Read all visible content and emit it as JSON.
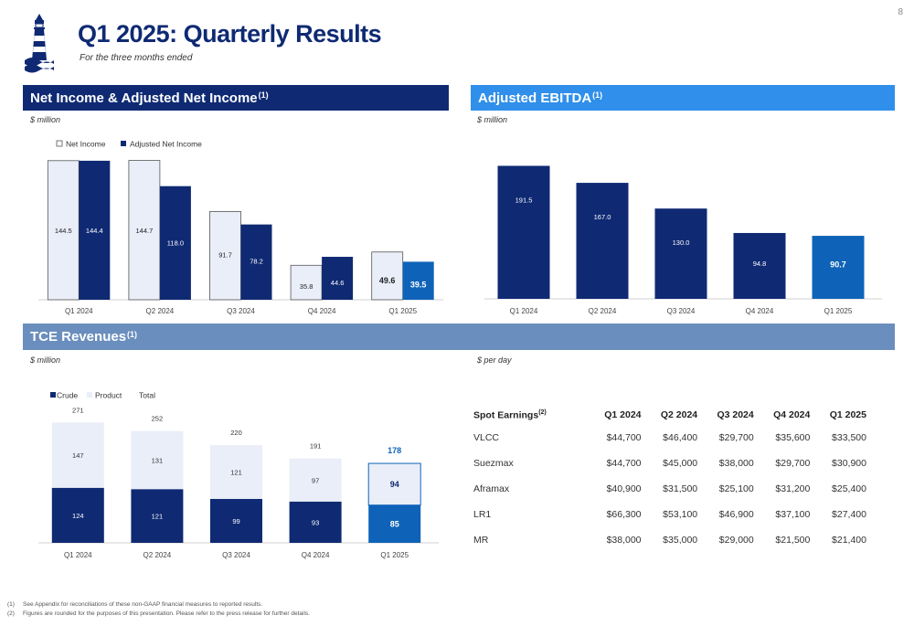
{
  "page": {
    "number": "8",
    "title": "Q1 2025: Quarterly Results",
    "subtitle": "For the three months ended"
  },
  "colors": {
    "navy": "#0f2a73",
    "bright_blue": "#0e63b8",
    "light": "#e9eef8",
    "tce_banner": "#6a8ebd",
    "ebitda_banner": "#2f8fea"
  },
  "net_income": {
    "title": "Net Income & Adjusted Net Income",
    "note_ref": "(1)",
    "unit": "$ million",
    "chart_data": {
      "type": "bar",
      "categories": [
        "Q1 2024",
        "Q2 2024",
        "Q3 2024",
        "Q4 2024",
        "Q1 2025"
      ],
      "series": [
        {
          "name": "Net Income",
          "values": [
            144.5,
            144.7,
            91.7,
            35.8,
            49.6
          ]
        },
        {
          "name": "Adjusted Net Income",
          "values": [
            144.4,
            118.0,
            78.2,
            44.6,
            39.5
          ]
        }
      ],
      "value_labels": [
        [
          "144.5",
          "144.7",
          "91.7",
          "35.8",
          "49.6"
        ],
        [
          "144.4",
          "118.0",
          "78.2",
          "44.6",
          "39.5"
        ]
      ],
      "legend": "top-left",
      "ylim": [
        0,
        150
      ]
    }
  },
  "ebitda": {
    "title": "Adjusted EBITDA",
    "note_ref": "(1)",
    "unit": "$ million",
    "chart_data": {
      "type": "bar",
      "categories": [
        "Q1 2024",
        "Q2 2024",
        "Q3 2024",
        "Q4 2024",
        "Q1 2025"
      ],
      "values": [
        191.5,
        167.0,
        130.0,
        94.8,
        90.7
      ],
      "value_labels": [
        "191.5",
        "167.0",
        "130.0",
        "94.8",
        "90.7"
      ],
      "ylim": [
        0,
        200
      ]
    }
  },
  "tce": {
    "title": "TCE Revenues",
    "note_ref": "(1)",
    "unit": "$ million",
    "chart_data": {
      "type": "bar",
      "stacked": true,
      "categories": [
        "Q1 2024",
        "Q2 2024",
        "Q3 2024",
        "Q4 2024",
        "Q1 2025"
      ],
      "series": [
        {
          "name": "Crude",
          "values": [
            124,
            121,
            99,
            93,
            85
          ]
        },
        {
          "name": "Product",
          "values": [
            147,
            131,
            121,
            97,
            94
          ]
        }
      ],
      "totals": [
        271,
        252,
        220,
        191,
        178
      ],
      "total_label": "Total",
      "legend": "top-left",
      "ylim": [
        0,
        280
      ]
    }
  },
  "spot": {
    "unit": "$ per day",
    "header": "Spot Earnings",
    "note_ref": "(2)",
    "columns": [
      "Q1 2024",
      "Q2 2024",
      "Q3 2024",
      "Q4 2024",
      "Q1 2025"
    ],
    "rows": [
      {
        "label": "VLCC",
        "values": [
          "$44,700",
          "$46,400",
          "$29,700",
          "$35,600",
          "$33,500"
        ]
      },
      {
        "label": "Suezmax",
        "values": [
          "$44,700",
          "$45,000",
          "$38,000",
          "$29,700",
          "$30,900"
        ]
      },
      {
        "label": "Aframax",
        "values": [
          "$40,900",
          "$31,500",
          "$25,100",
          "$31,200",
          "$25,400"
        ]
      },
      {
        "label": "LR1",
        "values": [
          "$66,300",
          "$53,100",
          "$46,900",
          "$37,100",
          "$27,400"
        ]
      },
      {
        "label": "MR",
        "values": [
          "$38,000",
          "$35,000",
          "$29,000",
          "$21,500",
          "$21,400"
        ]
      }
    ]
  },
  "footnotes": [
    {
      "num": "(1)",
      "text": "See Appendix for reconciliations of these non-GAAP financial measures to reported results."
    },
    {
      "num": "(2)",
      "text": "Figures are rounded for the purposes of this presentation.  Please refer to the press release for further details."
    }
  ],
  "icons": {
    "logo": "lighthouse-logo-icon"
  }
}
